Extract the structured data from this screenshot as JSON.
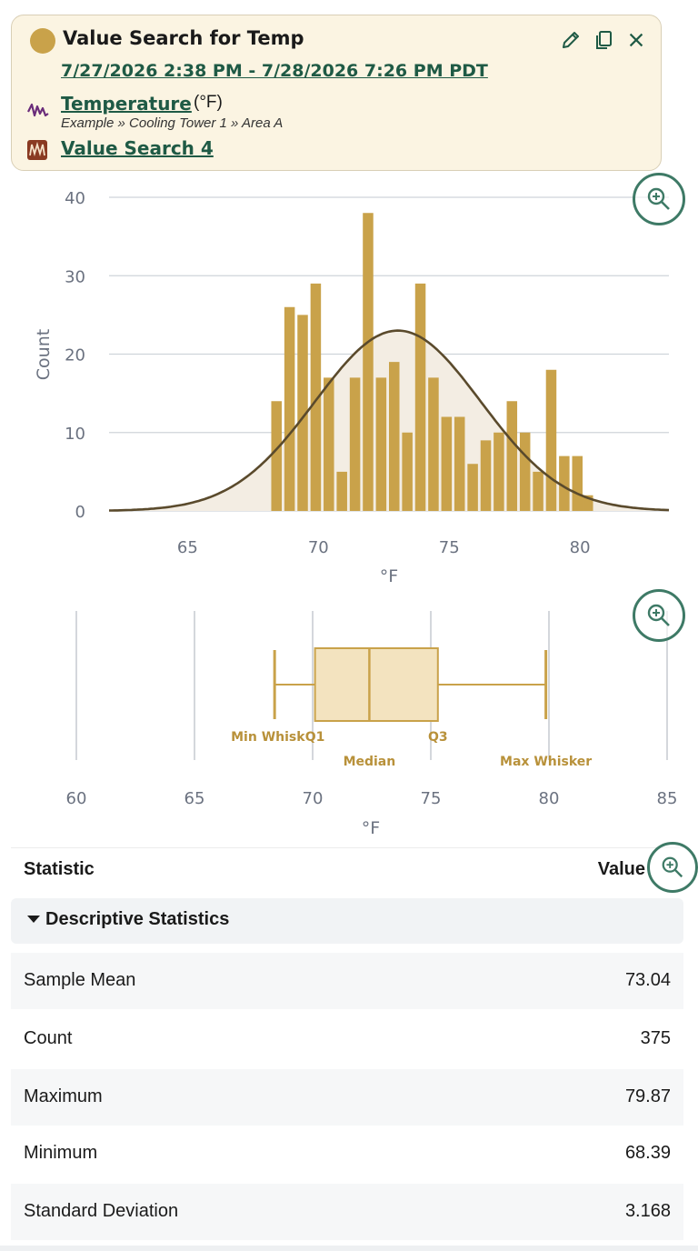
{
  "header": {
    "title": "Value Search for Temp",
    "date_range": "7/27/2026 2:38 PM - 7/28/2026 7:26 PM PDT",
    "signal_name": "Temperature",
    "signal_unit": "(°F)",
    "signal_path": "Example » Cooling Tower 1 » Area A",
    "value_search_name": "Value Search 4",
    "dot_color": "#c9a24a",
    "link_color": "#1f5a45",
    "actions": [
      "pencil-icon",
      "copy-icon",
      "close-icon"
    ]
  },
  "histogram": {
    "chart_data": {
      "type": "bar",
      "ylabel": "Count",
      "xlabel": "°F",
      "ylim": [
        0,
        40
      ],
      "xlim": [
        62,
        83.4
      ],
      "yticks": [
        "0",
        "10",
        "20",
        "30",
        "40"
      ],
      "xticks": [
        "65",
        "70",
        "75",
        "80"
      ],
      "bin_width": 0.4,
      "bins": [
        {
          "x": 68.2,
          "y": 14
        },
        {
          "x": 68.7,
          "y": 26
        },
        {
          "x": 69.2,
          "y": 25
        },
        {
          "x": 69.7,
          "y": 29
        },
        {
          "x": 70.2,
          "y": 17
        },
        {
          "x": 70.7,
          "y": 5
        },
        {
          "x": 71.2,
          "y": 17
        },
        {
          "x": 71.7,
          "y": 38
        },
        {
          "x": 72.2,
          "y": 17
        },
        {
          "x": 72.7,
          "y": 19
        },
        {
          "x": 73.2,
          "y": 10
        },
        {
          "x": 73.7,
          "y": 29
        },
        {
          "x": 74.2,
          "y": 17
        },
        {
          "x": 74.7,
          "y": 12
        },
        {
          "x": 75.2,
          "y": 12
        },
        {
          "x": 75.7,
          "y": 6
        },
        {
          "x": 76.2,
          "y": 9
        },
        {
          "x": 76.7,
          "y": 10
        },
        {
          "x": 77.2,
          "y": 14
        },
        {
          "x": 77.7,
          "y": 10
        },
        {
          "x": 78.2,
          "y": 5
        },
        {
          "x": 78.7,
          "y": 18
        },
        {
          "x": 79.2,
          "y": 7
        },
        {
          "x": 79.7,
          "y": 7
        },
        {
          "x": 80.1,
          "y": 2
        }
      ],
      "normal_curve": {
        "mean": 73.04,
        "stddev": 3.168,
        "peak": 23
      },
      "bar_color": "#c9a24a",
      "curve_color": "#5a4a2c"
    }
  },
  "boxplot": {
    "chart_data": {
      "type": "box",
      "xlabel": "°F",
      "xlim": [
        60,
        85
      ],
      "xticks": [
        "60",
        "65",
        "70",
        "75",
        "80",
        "85"
      ],
      "min_whisker": 68.39,
      "q1": 70.1,
      "median": 72.4,
      "q3": 75.3,
      "max_whisker": 79.87,
      "labels": {
        "min_whisker": "Min Whisk",
        "q1": "Q1",
        "median": "Median",
        "q3": "Q3",
        "max_whisker": "Max Whisker"
      },
      "box_color": "#f3e3bf",
      "line_color": "#c9a24a"
    }
  },
  "table": {
    "col_statistic": "Statistic",
    "col_value": "Value",
    "section_label": "Descriptive Statistics",
    "rows": [
      {
        "name": "Sample Mean",
        "value": "73.04"
      },
      {
        "name": "Count",
        "value": "375"
      },
      {
        "name": "Maximum",
        "value": "79.87"
      },
      {
        "name": "Minimum",
        "value": "68.39"
      },
      {
        "name": "Standard Deviation",
        "value": "3.168"
      }
    ]
  }
}
